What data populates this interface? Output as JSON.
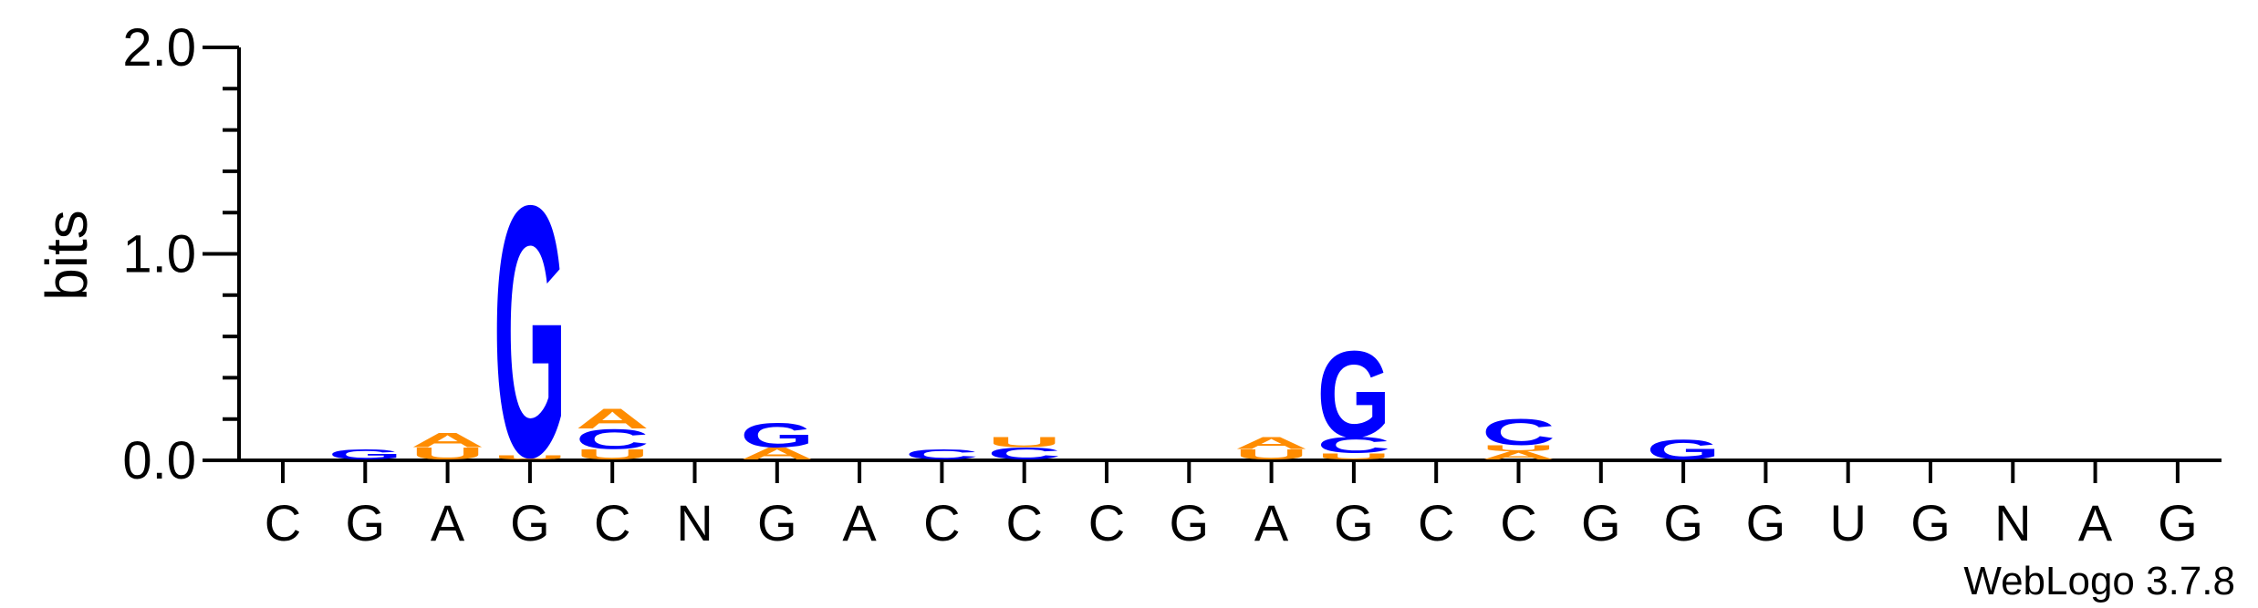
{
  "chart_data": {
    "type": "sequence-logo",
    "ylabel": "bits",
    "ylim": [
      0,
      2.0
    ],
    "yticks": [
      "0.0",
      "1.0",
      "2.0"
    ],
    "x_labels": [
      "C",
      "G",
      "A",
      "G",
      "C",
      "N",
      "G",
      "A",
      "C",
      "C",
      "C",
      "G",
      "A",
      "G",
      "C",
      "C",
      "G",
      "G",
      "G",
      "U",
      "G",
      "N",
      "A",
      "G"
    ],
    "colors": {
      "G": "#0000ff",
      "C": "#0000ff",
      "A": "#ff8c00",
      "U": "#ff8c00"
    },
    "stacks": [
      [],
      [
        [
          "G",
          0.05
        ]
      ],
      [
        [
          "U",
          0.06
        ],
        [
          "A",
          0.07
        ]
      ],
      [
        [
          "U",
          0.02
        ],
        [
          "G",
          1.25
        ]
      ],
      [
        [
          "U",
          0.05
        ],
        [
          "C",
          0.1
        ],
        [
          "A",
          0.1
        ]
      ],
      [],
      [
        [
          "A",
          0.06
        ],
        [
          "G",
          0.12
        ]
      ],
      [],
      [
        [
          "C",
          0.05
        ]
      ],
      [
        [
          "C",
          0.06
        ],
        [
          "U",
          0.05
        ]
      ],
      [],
      [],
      [
        [
          "U",
          0.05
        ],
        [
          "A",
          0.06
        ]
      ],
      [
        [
          "U",
          0.03
        ],
        [
          "C",
          0.08
        ],
        [
          "G",
          0.43
        ]
      ],
      [],
      [
        [
          "A",
          0.04
        ],
        [
          "U",
          0.03
        ],
        [
          "C",
          0.13
        ]
      ],
      [],
      [
        [
          "G",
          0.1
        ]
      ],
      [],
      [],
      [],
      [],
      [],
      []
    ],
    "footer": "WebLogo 3.7.8"
  }
}
